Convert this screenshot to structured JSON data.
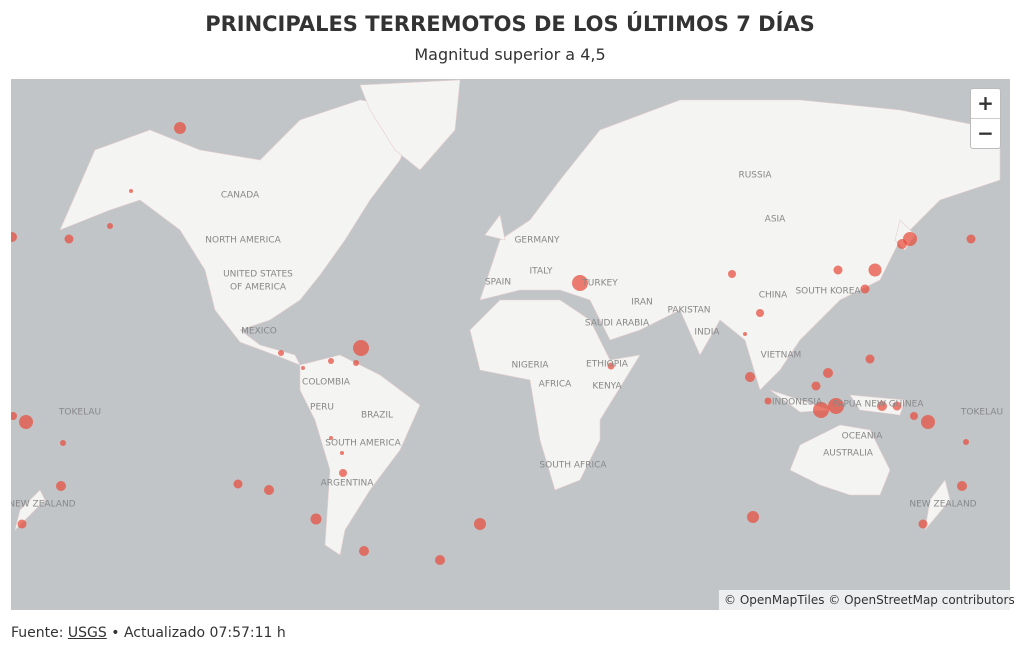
{
  "header": {
    "title": "PRINCIPALES TERREMOTOS DE LOS ÚLTIMOS 7 DÍAS",
    "subtitle": "Magnitud superior a 4,5"
  },
  "map": {
    "zoom_in": "+",
    "zoom_out": "−",
    "attribution": "© OpenMapTiles © OpenStreetMap contributors",
    "labels": [
      "CANADA",
      "NORTH AMERICA",
      "UNITED STATES",
      "OF AMERICA",
      "MEXICO",
      "COLOMBIA",
      "PERU",
      "BRAZIL",
      "SOUTH AMERICA",
      "ARGENTINA",
      "TOKELAU",
      "NEW ZEALAND",
      "GERMANY",
      "SPAIN",
      "ITALY",
      "TURKEY",
      "IRAN",
      "PAKISTAN",
      "INDIA",
      "SAUDI ARABIA",
      "NIGERIA",
      "ETHIOPIA",
      "AFRICA",
      "KENYA",
      "SOUTH AFRICA",
      "RUSSIA",
      "ASIA",
      "CHINA",
      "SOUTH KOREA",
      "VIETNAM",
      "INDONESIA",
      "PAPUA NEW GUINEA",
      "OCEANIA",
      "AUSTRALIA",
      "TOKELAU",
      "NEW ZEALAND"
    ]
  },
  "footer": {
    "source_label": "Fuente:",
    "source": "USGS",
    "updated": "• Actualizado 07:57:11 h"
  }
}
